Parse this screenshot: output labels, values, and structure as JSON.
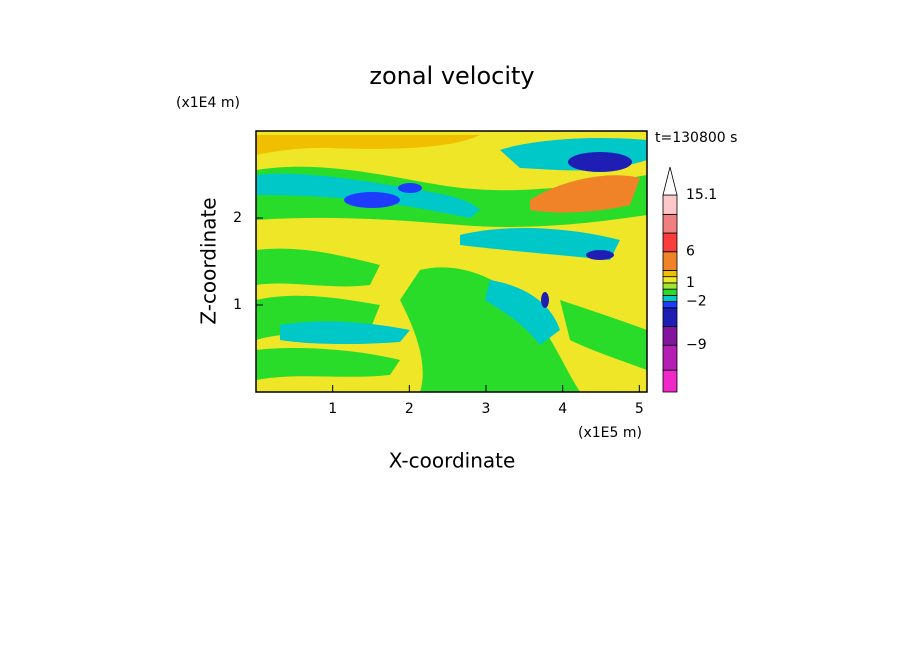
{
  "chart_data": {
    "type": "contour",
    "title": "zonal velocity",
    "x_label": "X-coordinate",
    "y_label": "Z-coordinate",
    "x_unit": "(x1E5 m)",
    "y_unit": "(x1E4 m)",
    "time_label": "t=130800 s",
    "xlim": [
      0,
      5.1
    ],
    "ylim": [
      0,
      3
    ],
    "xticks": [
      1,
      2,
      3,
      4,
      5
    ],
    "yticks": [
      1,
      2
    ],
    "colorbar": {
      "levels": [
        -16.5,
        -13,
        -9,
        -6,
        -3,
        -2,
        -1,
        0,
        1,
        2,
        3,
        6,
        9,
        12,
        15.1
      ],
      "colors": [
        "#f028c8",
        "#b41eb4",
        "#8214a0",
        "#1e1eb4",
        "#1e3cff",
        "#00c8c8",
        "#2adc2a",
        "#a0e632",
        "#f0e628",
        "#f0c000",
        "#f08228",
        "#fa3c3c",
        "#f08080",
        "#ffc8c8"
      ],
      "extend_color": "#ffffff",
      "ticks": [
        15.1,
        6,
        1,
        {
          "value": -2,
          "label": "−2"
        },
        {
          "value": -9,
          "label": "−9"
        }
      ]
    }
  }
}
